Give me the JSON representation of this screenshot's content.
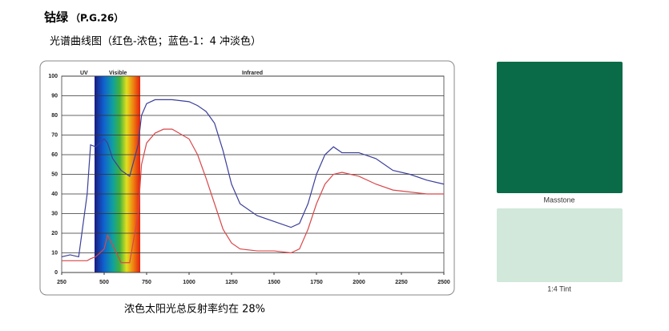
{
  "header": {
    "title": "钴绿",
    "code": "（P.G.26）",
    "subtitle": "光谱曲线图（红色-浓色；蓝色-1：4 冲淡色）"
  },
  "chart_data": {
    "type": "line",
    "annotations": [
      "UV",
      "Visible",
      "Infrared"
    ],
    "x": [
      250,
      300,
      350,
      400,
      420,
      450,
      500,
      520,
      550,
      600,
      650,
      700,
      720,
      750,
      800,
      850,
      900,
      1000,
      1050,
      1100,
      1150,
      1200,
      1250,
      1300,
      1400,
      1500,
      1600,
      1650,
      1700,
      1750,
      1800,
      1850,
      1900,
      2000,
      2100,
      2200,
      2300,
      2400,
      2500
    ],
    "series": [
      {
        "color": "#3b3f9a",
        "values": [
          8,
          9,
          8,
          40,
          65,
          64,
          68,
          66,
          58,
          52,
          49,
          65,
          80,
          86,
          88,
          88,
          88,
          87,
          85,
          82,
          76,
          62,
          45,
          35,
          29,
          26,
          23,
          25,
          35,
          50,
          60,
          64,
          61,
          61,
          58,
          52,
          50,
          47,
          45
        ]
      },
      {
        "color": "#d9474a",
        "values": [
          6,
          6,
          6,
          6,
          7,
          8,
          12,
          19,
          14,
          5,
          5,
          30,
          55,
          66,
          71,
          73,
          73,
          68,
          60,
          48,
          35,
          22,
          15,
          12,
          11,
          11,
          10,
          12,
          22,
          35,
          45,
          50,
          51,
          49,
          45,
          42,
          41,
          40,
          40
        ]
      }
    ],
    "xlim": [
      250,
      2500
    ],
    "xticks": [
      250,
      500,
      750,
      1000,
      1250,
      1500,
      1750,
      2000,
      2250,
      2500
    ],
    "ylim": [
      0,
      100
    ],
    "yticks": [
      0,
      10,
      20,
      30,
      40,
      50,
      60,
      70,
      80,
      90,
      100
    ],
    "grid": true
  },
  "swatches": [
    {
      "label": "Masstone",
      "color": "#096b47"
    },
    {
      "label": "1:4 Tint",
      "color": "#d1e8db"
    }
  ],
  "caption": "浓色太阳光总反射率约在 28%"
}
